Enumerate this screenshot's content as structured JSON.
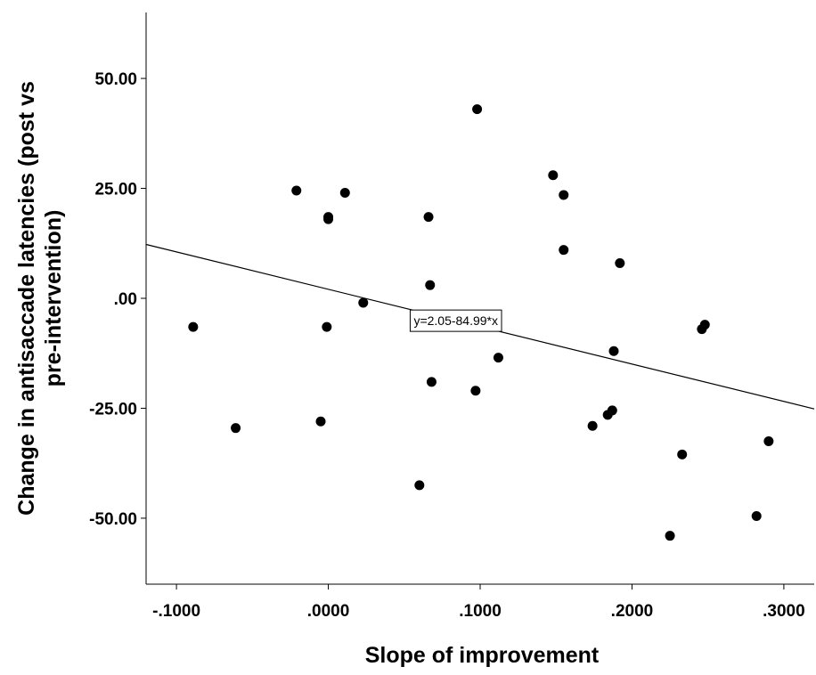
{
  "chart_data": {
    "type": "scatter",
    "title": "",
    "xlabel": "Slope of improvement",
    "ylabel_line1": "Change in antisaccade latencies (post vs",
    "ylabel_line2": "pre-intervention)",
    "xlim": [
      -0.12,
      0.32
    ],
    "ylim": [
      -65,
      65
    ],
    "x_ticks": [
      -0.1,
      0.0,
      0.1,
      0.2,
      0.3
    ],
    "x_tick_labels": [
      "-.1000",
      ".0000",
      ".1000",
      ".2000",
      ".3000"
    ],
    "y_ticks": [
      50,
      25,
      0,
      -25,
      -50
    ],
    "y_tick_labels": [
      "50.00",
      "25.00",
      ".00",
      "-25.00",
      "-50.00"
    ],
    "grid": false,
    "marker_color": "#000000",
    "points": [
      {
        "x": -0.089,
        "y": -6.5
      },
      {
        "x": -0.061,
        "y": -29.5
      },
      {
        "x": -0.021,
        "y": 24.5
      },
      {
        "x": -0.005,
        "y": -28.0
      },
      {
        "x": -0.001,
        "y": -6.5
      },
      {
        "x": 0.0,
        "y": 18.5
      },
      {
        "x": 0.0,
        "y": 18.0
      },
      {
        "x": 0.011,
        "y": 24.0
      },
      {
        "x": 0.023,
        "y": -1.0
      },
      {
        "x": 0.06,
        "y": -42.5
      },
      {
        "x": 0.066,
        "y": 18.5
      },
      {
        "x": 0.067,
        "y": 3.0
      },
      {
        "x": 0.068,
        "y": -19.0
      },
      {
        "x": 0.097,
        "y": -21.0
      },
      {
        "x": 0.098,
        "y": 43.0
      },
      {
        "x": 0.112,
        "y": -13.5
      },
      {
        "x": 0.148,
        "y": 28.0
      },
      {
        "x": 0.155,
        "y": 23.5
      },
      {
        "x": 0.155,
        "y": 11.0
      },
      {
        "x": 0.174,
        "y": -29.0
      },
      {
        "x": 0.184,
        "y": -26.5
      },
      {
        "x": 0.187,
        "y": -25.5
      },
      {
        "x": 0.188,
        "y": -12.0
      },
      {
        "x": 0.192,
        "y": 8.0
      },
      {
        "x": 0.225,
        "y": -54.0
      },
      {
        "x": 0.233,
        "y": -35.5
      },
      {
        "x": 0.246,
        "y": -7.0
      },
      {
        "x": 0.248,
        "y": -6.0
      },
      {
        "x": 0.282,
        "y": -49.5
      },
      {
        "x": 0.29,
        "y": -32.5
      }
    ],
    "fit_line": {
      "intercept": 2.05,
      "slope": -84.99,
      "color": "#000000"
    },
    "annotation": "y=2.05-84.99*x",
    "annotation_at_x": 0.084
  }
}
